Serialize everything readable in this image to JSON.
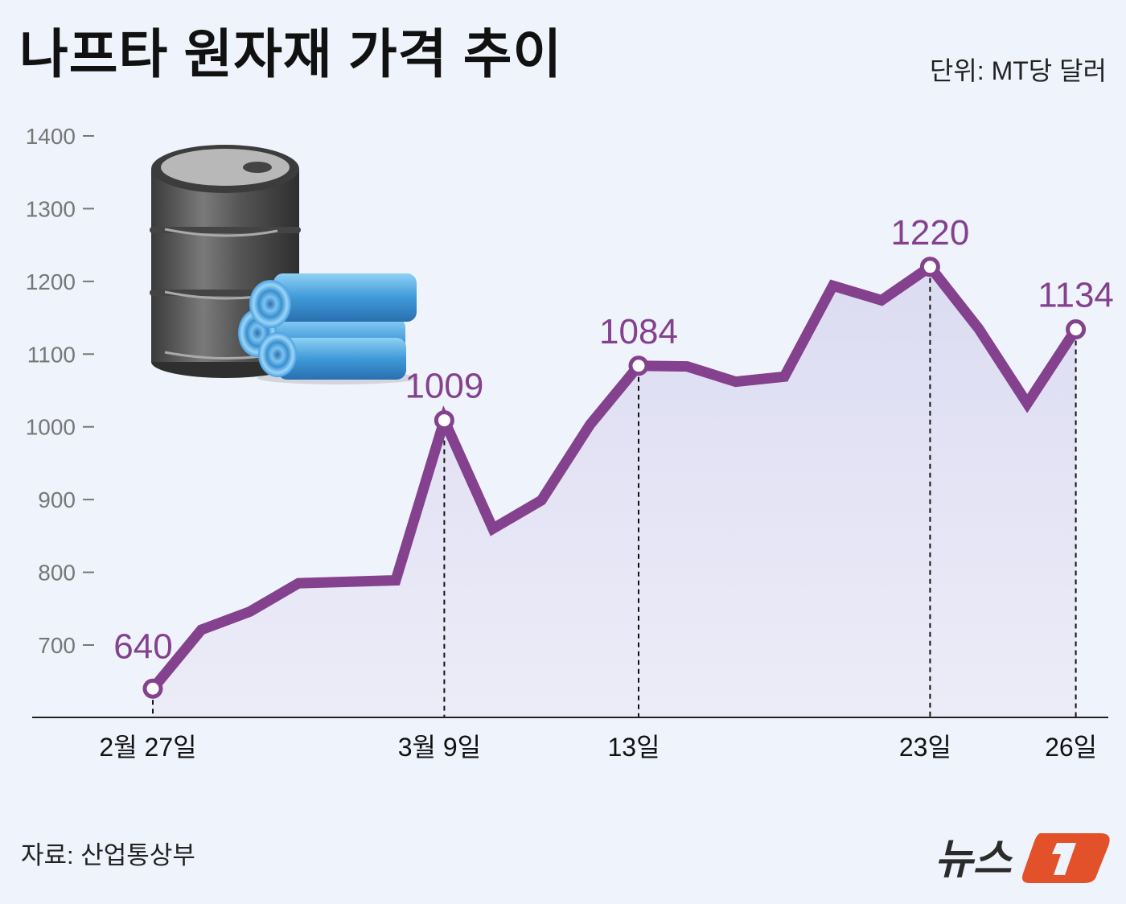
{
  "header": {
    "title": "나프타 원자재 가격 추이",
    "unit": "단위: MT당 달러"
  },
  "footer": {
    "source": "자료: 산업통상부",
    "logo_text": "뉴스",
    "logo_mark": "1"
  },
  "colors": {
    "background": "#eff3fb",
    "line": "#84418e",
    "area_fill_top": "#dcdcf2",
    "area_fill_bottom": "#ececf8",
    "axis": "#222222",
    "tick_label": "#777777",
    "logo_accent": "#e2512a"
  },
  "illustration": "oil-barrel-and-naphtha-rolls",
  "chart_data": {
    "type": "area",
    "title": "나프타 원자재 가격 추이",
    "unit": "MT당 달러",
    "xlabel": "",
    "ylabel": "",
    "ylim": [
      700,
      1400
    ],
    "yticks": [
      1400,
      1300,
      1200,
      1100,
      1000,
      900,
      800,
      700
    ],
    "grid": false,
    "x_tick_labels": [
      {
        "index": 0,
        "label": "2월 27일"
      },
      {
        "index": 6,
        "label": "3월 9일"
      },
      {
        "index": 10,
        "label": "13일"
      },
      {
        "index": 16,
        "label": "23일"
      },
      {
        "index": 19,
        "label": "26일"
      }
    ],
    "values": [
      640,
      721,
      746,
      785,
      787,
      789,
      1009,
      860,
      899,
      1003,
      1084,
      1083,
      1062,
      1069,
      1194,
      1174,
      1220,
      1135,
      1032,
      1134
    ],
    "annotated_points": [
      {
        "index": 0,
        "label": "640"
      },
      {
        "index": 6,
        "label": "1009"
      },
      {
        "index": 10,
        "label": "1084"
      },
      {
        "index": 16,
        "label": "1220"
      },
      {
        "index": 19,
        "label": "1134"
      }
    ]
  }
}
